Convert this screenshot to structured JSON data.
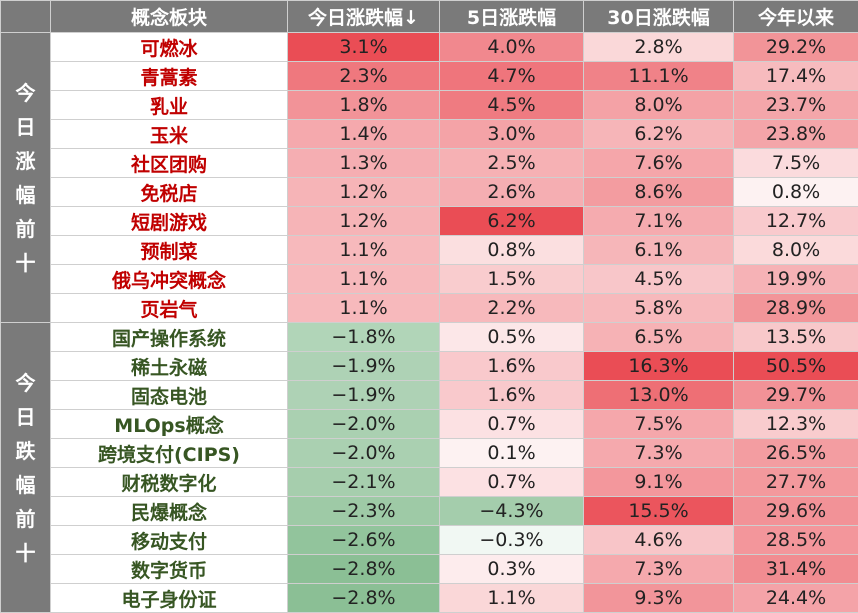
{
  "chart_data": {
    "type": "table",
    "headers": [
      "概念板块",
      "今日涨跌幅↓",
      "5日涨跌幅",
      "30日涨跌幅",
      "今年以来"
    ],
    "groups": [
      {
        "label": "今日涨幅前十",
        "direction": "up",
        "rows": [
          {
            "name": "可燃冰",
            "d1": "3.1%",
            "d5": "4.0%",
            "d30": "2.8%",
            "ytd": "29.2%"
          },
          {
            "name": "青蒿素",
            "d1": "2.3%",
            "d5": "4.7%",
            "d30": "11.1%",
            "ytd": "17.4%"
          },
          {
            "name": "乳业",
            "d1": "1.8%",
            "d5": "4.5%",
            "d30": "8.0%",
            "ytd": "23.7%"
          },
          {
            "name": "玉米",
            "d1": "1.4%",
            "d5": "3.0%",
            "d30": "6.2%",
            "ytd": "23.8%"
          },
          {
            "name": "社区团购",
            "d1": "1.3%",
            "d5": "2.5%",
            "d30": "7.6%",
            "ytd": "7.5%"
          },
          {
            "name": "免税店",
            "d1": "1.2%",
            "d5": "2.6%",
            "d30": "8.6%",
            "ytd": "0.8%"
          },
          {
            "name": "短剧游戏",
            "d1": "1.2%",
            "d5": "6.2%",
            "d30": "7.1%",
            "ytd": "12.7%"
          },
          {
            "name": "预制菜",
            "d1": "1.1%",
            "d5": "0.8%",
            "d30": "6.1%",
            "ytd": "8.0%"
          },
          {
            "name": "俄乌冲突概念",
            "d1": "1.1%",
            "d5": "1.5%",
            "d30": "4.5%",
            "ytd": "19.9%"
          },
          {
            "name": "页岩气",
            "d1": "1.1%",
            "d5": "2.2%",
            "d30": "5.8%",
            "ytd": "28.9%"
          }
        ]
      },
      {
        "label": "今日跌幅前十",
        "direction": "down",
        "rows": [
          {
            "name": "国产操作系统",
            "d1": "−1.8%",
            "d5": "0.5%",
            "d30": "6.5%",
            "ytd": "13.5%"
          },
          {
            "name": "稀土永磁",
            "d1": "−1.9%",
            "d5": "1.6%",
            "d30": "16.3%",
            "ytd": "50.5%"
          },
          {
            "name": "固态电池",
            "d1": "−1.9%",
            "d5": "1.6%",
            "d30": "13.0%",
            "ytd": "29.7%"
          },
          {
            "name": "MLOps概念",
            "d1": "−2.0%",
            "d5": "0.7%",
            "d30": "7.5%",
            "ytd": "12.3%"
          },
          {
            "name": "跨境支付(CIPS)",
            "d1": "−2.0%",
            "d5": "0.1%",
            "d30": "7.3%",
            "ytd": "26.5%"
          },
          {
            "name": "财税数字化",
            "d1": "−2.1%",
            "d5": "0.7%",
            "d30": "9.1%",
            "ytd": "27.7%"
          },
          {
            "name": "民爆概念",
            "d1": "−2.3%",
            "d5": "−4.3%",
            "d30": "15.5%",
            "ytd": "29.6%"
          },
          {
            "name": "移动支付",
            "d1": "−2.6%",
            "d5": "−0.3%",
            "d30": "4.6%",
            "ytd": "28.5%"
          },
          {
            "name": "数字货币",
            "d1": "−2.8%",
            "d5": "0.3%",
            "d30": "7.3%",
            "ytd": "31.4%"
          },
          {
            "name": "电子身份证",
            "d1": "−2.8%",
            "d5": "1.1%",
            "d30": "9.3%",
            "ytd": "24.4%"
          }
        ]
      }
    ]
  },
  "colors": {
    "header_bg": "#7a7a7a",
    "header_text": "#ffffff",
    "gain_name": "#c00000",
    "loss_name": "#375623",
    "heat_positive": "#ea4d55",
    "heat_negative": "#7fb98a"
  }
}
